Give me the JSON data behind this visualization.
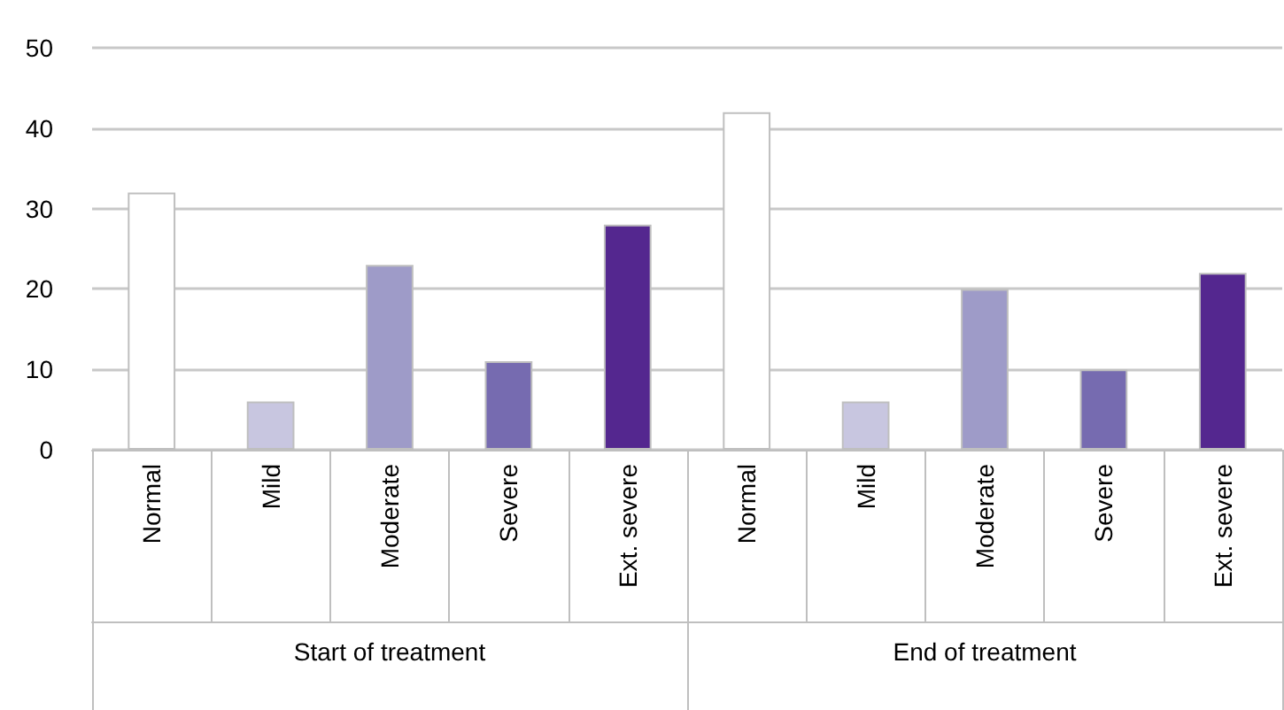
{
  "chart_data": {
    "type": "bar",
    "categories": [
      "Normal",
      "Mild",
      "Moderate",
      "Severe",
      "Ext. severe",
      "Normal",
      "Mild",
      "Moderate",
      "Severe",
      "Ext. severe"
    ],
    "values": [
      32,
      6,
      23,
      11,
      28,
      42,
      6,
      20,
      10,
      22
    ],
    "colors": [
      "#ffffff",
      "#c8c6e0",
      "#9e9bc8",
      "#766bb0",
      "#54278f",
      "#ffffff",
      "#c8c6e0",
      "#9e9bc8",
      "#766bb0",
      "#54278f"
    ],
    "ylim": [
      0,
      50
    ],
    "yticks": [
      0,
      10,
      20,
      30,
      40,
      50
    ],
    "grid": "y",
    "annotations": [
      "Start of treatment",
      "End of treatment"
    ]
  }
}
